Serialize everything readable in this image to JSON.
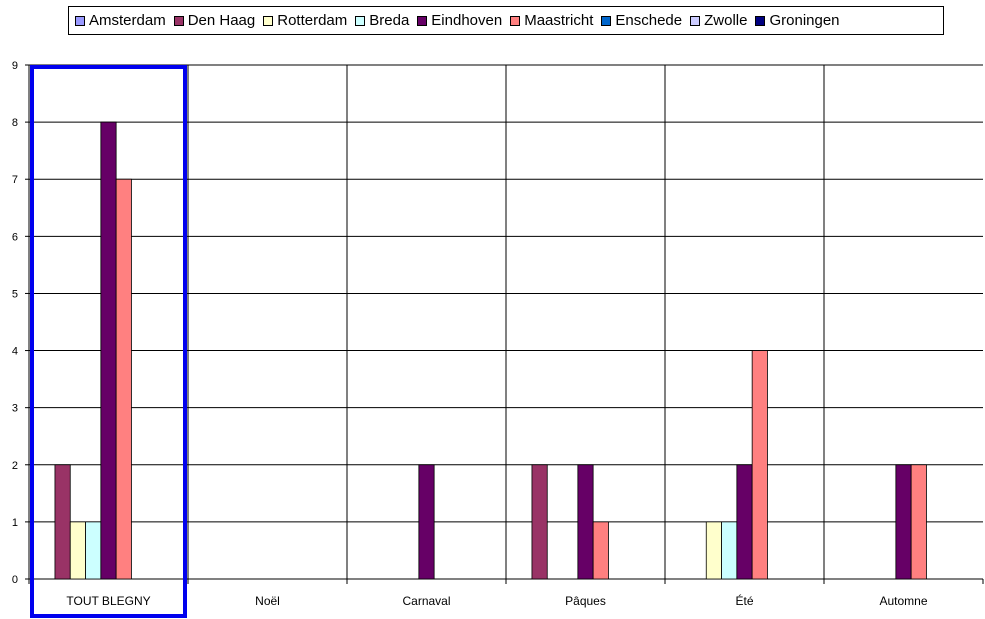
{
  "chart_data": {
    "type": "bar",
    "categories": [
      "TOUT BLEGNY",
      "Noël",
      "Carnaval",
      "Pâques",
      "Été",
      "Automne"
    ],
    "series": [
      {
        "name": "Amsterdam",
        "color": "#9999ff",
        "values": [
          0,
          0,
          0,
          0,
          0,
          0
        ]
      },
      {
        "name": "Den Haag",
        "color": "#993366",
        "values": [
          2,
          0,
          0,
          2,
          0,
          0
        ]
      },
      {
        "name": "Rotterdam",
        "color": "#ffffcc",
        "values": [
          1,
          0,
          0,
          0,
          1,
          0
        ]
      },
      {
        "name": "Breda",
        "color": "#ccffff",
        "values": [
          1,
          0,
          0,
          0,
          1,
          0
        ]
      },
      {
        "name": "Eindhoven",
        "color": "#660066",
        "values": [
          8,
          0,
          2,
          2,
          2,
          2
        ]
      },
      {
        "name": "Maastricht",
        "color": "#ff8080",
        "values": [
          7,
          0,
          0,
          1,
          4,
          2
        ]
      },
      {
        "name": "Enschede",
        "color": "#0066cc",
        "values": [
          0,
          0,
          0,
          0,
          0,
          0
        ]
      },
      {
        "name": "Zwolle",
        "color": "#ccccff",
        "values": [
          0,
          0,
          0,
          0,
          0,
          0
        ]
      },
      {
        "name": "Groningen",
        "color": "#000080",
        "values": [
          0,
          0,
          0,
          0,
          0,
          0
        ]
      }
    ],
    "ylim": [
      0,
      9
    ],
    "yticks": [
      0,
      1,
      2,
      3,
      4,
      5,
      6,
      7,
      8,
      9
    ],
    "grid": true,
    "legend_position": "top",
    "highlight_category": "TOUT BLEGNY",
    "highlight_color": "#0000ee"
  }
}
